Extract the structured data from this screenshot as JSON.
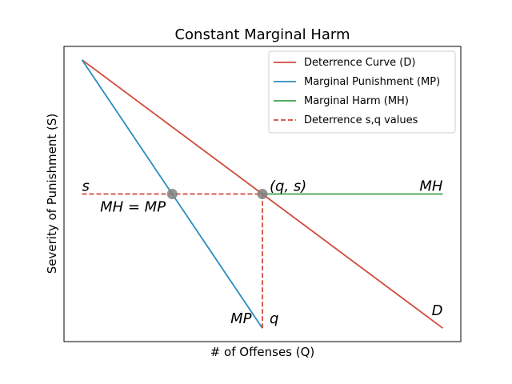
{
  "chart_data": {
    "type": "line",
    "title": "Constant Marginal Harm",
    "xlabel": "# of Offenses (Q)",
    "ylabel": "Severity of Punishment (S)",
    "xlim": [
      -0.05,
      1.05
    ],
    "ylim": [
      -0.05,
      1.05
    ],
    "x_ticks": [],
    "y_ticks": [],
    "grid": false,
    "legend_position": "top-right",
    "legend": [
      {
        "label": "Deterrence Curve (D)",
        "color": "#d04a3c",
        "style": "solid"
      },
      {
        "label": "Marginal Punishment (MP)",
        "color": "#2a8cc0",
        "style": "solid"
      },
      {
        "label": "Marginal Harm (MH)",
        "color": "#3fa04a",
        "style": "solid"
      },
      {
        "label": "Deterrence s,q values",
        "color": "#d04a3c",
        "style": "dashed"
      }
    ],
    "series": [
      {
        "key": "D",
        "color": "#d04a3c",
        "dash": false,
        "x": [
          0,
          1
        ],
        "y": [
          1,
          0
        ]
      },
      {
        "key": "MP",
        "color": "#2a8cc0",
        "dash": false,
        "x": [
          0,
          0.5
        ],
        "y": [
          1,
          0
        ]
      },
      {
        "key": "MH",
        "color": "#3fa04a",
        "dash": false,
        "x": [
          0.5,
          1
        ],
        "y": [
          0.5,
          0.5
        ]
      },
      {
        "key": "s-line",
        "color": "#d04a3c",
        "dash": true,
        "x": [
          0,
          0.5
        ],
        "y": [
          0.5,
          0.5
        ]
      },
      {
        "key": "q-line",
        "color": "#d04a3c",
        "dash": true,
        "x": [
          0.5,
          0.5
        ],
        "y": [
          0,
          0.5
        ]
      }
    ],
    "points": [
      {
        "x": 0.25,
        "y": 0.5,
        "color": "#808080"
      },
      {
        "x": 0.5,
        "y": 0.5,
        "color": "#808080"
      }
    ],
    "annotations": [
      {
        "text": "s",
        "x": 0.0,
        "y": 0.5,
        "anchor": "start",
        "dy": -4
      },
      {
        "text": "MH = MP",
        "x": 0.05,
        "y": 0.5,
        "anchor": "start",
        "dy": 22
      },
      {
        "text": "(q, s)",
        "x": 0.52,
        "y": 0.5,
        "anchor": "start",
        "dy": -4
      },
      {
        "text": "MH",
        "x": 1.0,
        "y": 0.5,
        "anchor": "end",
        "dy": -4
      },
      {
        "text": "MP",
        "x": 0.47,
        "y": 0.0,
        "anchor": "end",
        "dy": -6
      },
      {
        "text": "q",
        "x": 0.52,
        "y": 0.0,
        "anchor": "start",
        "dy": -6
      },
      {
        "text": "D",
        "x": 1.0,
        "y": 0.0,
        "anchor": "end",
        "dy": -16
      }
    ]
  }
}
